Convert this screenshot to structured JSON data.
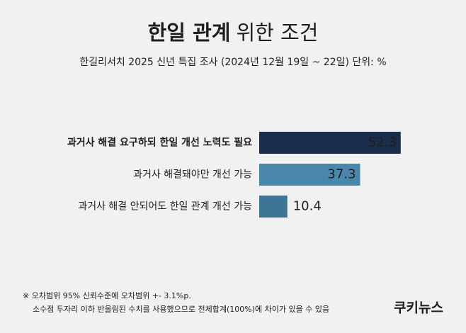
{
  "chart_data": {
    "type": "bar",
    "orientation": "horizontal",
    "title_parts": [
      "한일 관계",
      "위한 조건"
    ],
    "subtitle": "한길리서치 2025 신년 특집 조사 (2024년 12월 19일 ~ 22일) 단위: %",
    "categories": [
      "과거사 해결 요구하되 한일 개선 노력도 필요",
      "과거사 해결돼야만 개선 가능",
      "과거사 해결 안되어도 한일 관계 개선 가능"
    ],
    "values": [
      52.3,
      37.3,
      10.4
    ],
    "colors": [
      "#1b2c4c",
      "#4a87ab",
      "#3e7596"
    ],
    "notes": [
      "※ 오차범위 95% 신뢰수준에 오차범위 +- 3.1%p.",
      "소수점 두자리 이하 반올림된 수치를 사용했으므로 전체합계(100%)에 차이가 있을 수 있음"
    ],
    "source_logo": "쿠키뉴스"
  }
}
